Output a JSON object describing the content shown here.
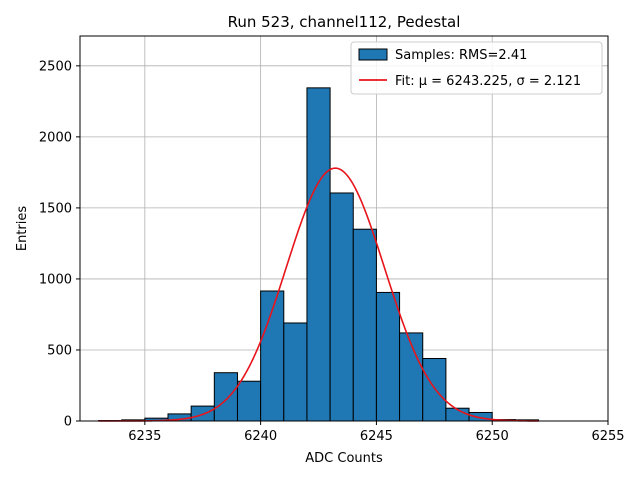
{
  "chart_data": {
    "type": "bar",
    "title": "Run 523, channel112, Pedestal",
    "xlabel": "ADC Counts",
    "ylabel": "Entries",
    "xlim": [
      6232.2,
      6255
    ],
    "ylim": [
      0,
      2710
    ],
    "xticks": [
      6235,
      6240,
      6245,
      6250,
      6255
    ],
    "yticks": [
      0,
      500,
      1000,
      1500,
      2000,
      2500
    ],
    "grid": true,
    "legend_position": "top-right",
    "colors": {
      "bars": "#1f77b4",
      "bar_edge": "#000000",
      "fit": "#e8141c",
      "grid": "#b0b0b0"
    },
    "histogram": {
      "name": "Samples: RMS=2.41",
      "bin_edges": [
        6233,
        6234,
        6235,
        6236,
        6237,
        6238,
        6239,
        6240,
        6241,
        6242,
        6243,
        6244,
        6245,
        6246,
        6247,
        6248,
        6249,
        6250,
        6251,
        6252
      ],
      "counts": [
        3,
        8,
        20,
        50,
        105,
        340,
        280,
        915,
        690,
        2345,
        1605,
        1350,
        905,
        620,
        440,
        90,
        60,
        10,
        8
      ]
    },
    "fit": {
      "name": "Fit: μ = 6243.225, σ = 2.121",
      "mu": 6243.225,
      "sigma": 2.121,
      "amplitude": 1780,
      "x_range": [
        6233,
        6252
      ]
    }
  }
}
